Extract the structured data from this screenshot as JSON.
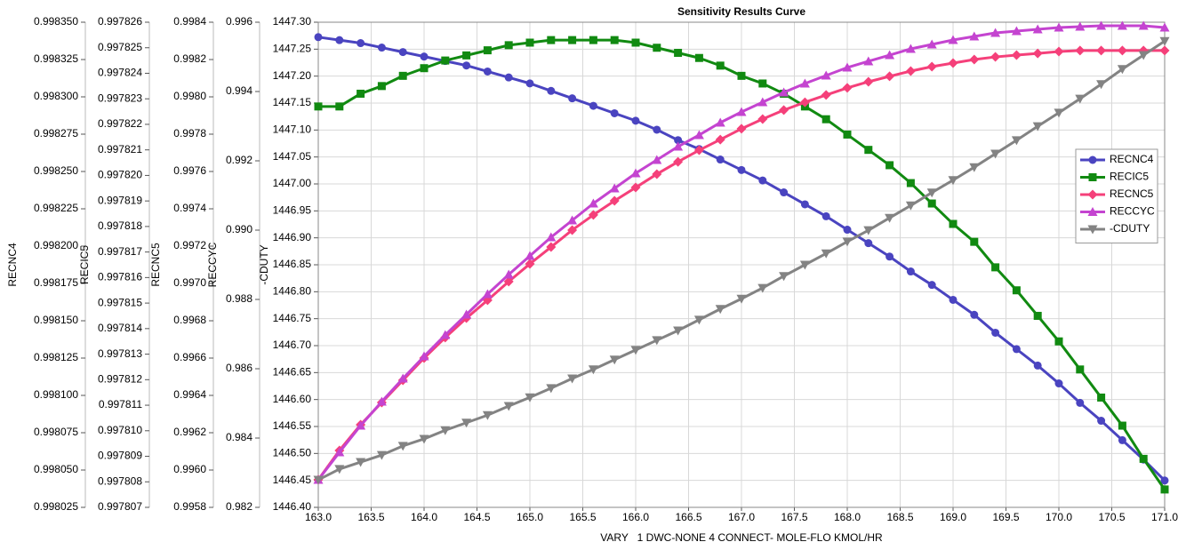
{
  "chart_data": {
    "type": "line",
    "title": "Sensitivity Results Curve",
    "xlabel": "VARY   1 DWC-NONE 4 CONNECT- MOLE-FLO KMOL/HR",
    "grid": true,
    "legend": "right",
    "xlim": [
      163,
      171
    ],
    "xticks": [
      {
        "value": 163,
        "label": "163.0"
      },
      163.5,
      {
        "value": 164,
        "label": "164.0"
      },
      164.5,
      {
        "value": 165,
        "label": "165.0"
      },
      165.5,
      {
        "value": 166,
        "label": "166.0"
      },
      166.5,
      {
        "value": 167,
        "label": "167.0"
      },
      167.5,
      {
        "value": 168,
        "label": "168.0"
      },
      168.5,
      {
        "value": 169,
        "label": "169.0"
      },
      169.5,
      {
        "value": 170,
        "label": "170.0"
      },
      170.5,
      {
        "value": 171,
        "label": "171.0"
      }
    ],
    "x": [
      163,
      163.2,
      163.4,
      163.6,
      163.8,
      164,
      164.2,
      164.4,
      164.6,
      164.8,
      165,
      165.2,
      165.4,
      165.6,
      165.8,
      166,
      166.2,
      166.4,
      166.6,
      166.8,
      167,
      167.2,
      167.4,
      167.6,
      167.8,
      168,
      168.2,
      168.4,
      168.6,
      168.8,
      169,
      169.2,
      169.4,
      169.6,
      169.8,
      170,
      170.2,
      170.4,
      170.6,
      170.8,
      171
    ],
    "y_axes": [
      {
        "label": "RECNC4",
        "ylim": [
          0.998025,
          0.99835
        ],
        "yticks": [
          0.998025,
          {
            "value": 0.99805,
            "label": "0.998050"
          },
          0.998075,
          {
            "value": 0.9981,
            "label": "0.998100"
          },
          0.998125,
          {
            "value": 0.99815,
            "label": "0.998150"
          },
          0.998175,
          {
            "value": 0.9982,
            "label": "0.998200"
          },
          0.998225,
          {
            "value": 0.99825,
            "label": "0.998250"
          },
          0.998275,
          {
            "value": 0.9983,
            "label": "0.998300"
          },
          0.998325,
          {
            "value": 0.99835,
            "label": "0.998350"
          }
        ]
      },
      {
        "label": "RECIC5",
        "ylim": [
          0.997807,
          0.997826
        ],
        "yticks": [
          0.997807,
          0.997808,
          0.997809,
          {
            "value": 0.99781,
            "label": "0.997810"
          },
          0.997811,
          0.997812,
          0.997813,
          0.997814,
          0.997815,
          0.997816,
          0.997817,
          0.997818,
          0.997819,
          {
            "value": 0.99782,
            "label": "0.997820"
          },
          0.997821,
          0.997822,
          0.997823,
          0.997824,
          0.997825,
          0.997826
        ]
      },
      {
        "label": "RECNC5",
        "ylim": [
          0.9958,
          0.9984
        ],
        "yticks": [
          0.9958,
          {
            "value": 0.996,
            "label": "0.9960"
          },
          0.9962,
          0.9964,
          0.9966,
          0.9968,
          {
            "value": 0.997,
            "label": "0.9970"
          },
          0.9972,
          0.9974,
          0.9976,
          0.9978,
          {
            "value": 0.998,
            "label": "0.9980"
          },
          0.9982,
          0.9984
        ]
      },
      {
        "label": "RECCYC",
        "ylim": [
          0.982,
          0.996
        ],
        "yticks": [
          0.982,
          0.984,
          0.986,
          0.988,
          {
            "value": 0.99,
            "label": "0.990"
          },
          0.992,
          0.994,
          0.996
        ]
      },
      {
        "label": "-CDUTY",
        "ylim": [
          1446.4,
          1447.3
        ],
        "yticks": [
          {
            "value": 1446.4,
            "label": "1446.40"
          },
          1446.45,
          {
            "value": 1446.5,
            "label": "1446.50"
          },
          1446.55,
          {
            "value": 1446.6,
            "label": "1446.60"
          },
          1446.65,
          {
            "value": 1446.7,
            "label": "1446.70"
          },
          1446.75,
          {
            "value": 1446.8,
            "label": "1446.80"
          },
          1446.85,
          {
            "value": 1446.9,
            "label": "1446.90"
          },
          1446.95,
          {
            "value": 1447,
            "label": "1447.00"
          },
          1447.05,
          {
            "value": 1447.1,
            "label": "1447.10"
          },
          1447.15,
          {
            "value": 1447.2,
            "label": "1447.20"
          },
          1447.25,
          {
            "value": 1447.3,
            "label": "1447.30"
          }
        ]
      }
    ],
    "series": [
      {
        "name": "RECNC4",
        "color": "#4a44c0",
        "marker": "circle",
        "values": [
          0.99834,
          0.998338,
          0.998336,
          0.998333,
          0.99833,
          0.998327,
          0.998324,
          0.998321,
          0.998317,
          0.998313,
          0.998309,
          0.998304,
          0.998299,
          0.998294,
          0.998289,
          0.998284,
          0.998278,
          0.998271,
          0.998265,
          0.998258,
          0.998251,
          0.998244,
          0.998236,
          0.998228,
          0.99822,
          0.998211,
          0.998202,
          0.998193,
          0.998183,
          0.998174,
          0.998164,
          0.998154,
          0.998142,
          0.998131,
          0.99812,
          0.998108,
          0.998095,
          0.998083,
          0.99807,
          0.998057,
          0.998043
        ]
      },
      {
        "name": "RECIC5",
        "color": "#118a11",
        "marker": "square",
        "values": [
          0.9978227,
          0.9978227,
          0.9978232,
          0.9978235,
          0.9978239,
          0.9978242,
          0.9978245,
          0.9978247,
          0.9978249,
          0.9978251,
          0.9978252,
          0.9978253,
          0.9978253,
          0.9978253,
          0.9978253,
          0.9978252,
          0.997825,
          0.9978248,
          0.9978246,
          0.9978243,
          0.9978239,
          0.9978236,
          0.9978232,
          0.9978227,
          0.9978222,
          0.9978216,
          0.997821,
          0.9978204,
          0.9978197,
          0.9978189,
          0.9978181,
          0.9978174,
          0.9978164,
          0.9978155,
          0.9978145,
          0.9978135,
          0.9978124,
          0.9978113,
          0.9978102,
          0.9978089,
          0.9978077
        ]
      },
      {
        "name": "RECNC5",
        "color": "#f5407a",
        "marker": "diamond",
        "values": [
          0.995948,
          0.996105,
          0.996243,
          0.996362,
          0.996481,
          0.9966,
          0.99671,
          0.996814,
          0.99691,
          0.99701,
          0.997105,
          0.997195,
          0.997286,
          0.997367,
          0.997443,
          0.997514,
          0.997586,
          0.997652,
          0.997714,
          0.997771,
          0.997829,
          0.997881,
          0.997929,
          0.997971,
          0.99801,
          0.998048,
          0.998081,
          0.99811,
          0.998138,
          0.998162,
          0.998181,
          0.9982,
          0.998214,
          0.998224,
          0.998233,
          0.998243,
          0.998248,
          0.998248,
          0.998248,
          0.998248,
          0.998248
        ]
      },
      {
        "name": "RECCYC",
        "color": "#c444d0",
        "marker": "triangle-up",
        "values": [
          0.982795,
          0.98359,
          0.984359,
          0.985051,
          0.985718,
          0.986359,
          0.986974,
          0.987564,
          0.988154,
          0.988718,
          0.989256,
          0.989795,
          0.990282,
          0.990769,
          0.991205,
          0.991641,
          0.992026,
          0.99241,
          0.992744,
          0.993103,
          0.99341,
          0.993692,
          0.993974,
          0.99423,
          0.994462,
          0.994692,
          0.994872,
          0.995051,
          0.995231,
          0.995359,
          0.995487,
          0.99559,
          0.995692,
          0.995744,
          0.995795,
          0.995846,
          0.995872,
          0.995897,
          0.995897,
          0.995897,
          0.995846
        ]
      },
      {
        "name": "-CDUTY",
        "color": "#838383",
        "marker": "triangle-down",
        "values": [
          1446.451,
          1446.471,
          1446.484,
          1446.497,
          1446.514,
          1446.527,
          1446.543,
          1446.557,
          1446.571,
          1446.588,
          1446.604,
          1446.621,
          1446.639,
          1446.656,
          1446.674,
          1446.692,
          1446.71,
          1446.728,
          1446.748,
          1446.768,
          1446.787,
          1446.807,
          1446.829,
          1446.85,
          1446.871,
          1446.893,
          1446.914,
          1446.937,
          1446.96,
          1446.984,
          1447.007,
          1447.031,
          1447.056,
          1447.081,
          1447.107,
          1447.132,
          1447.158,
          1447.185,
          1447.213,
          1447.239,
          1447.265
        ]
      }
    ]
  }
}
